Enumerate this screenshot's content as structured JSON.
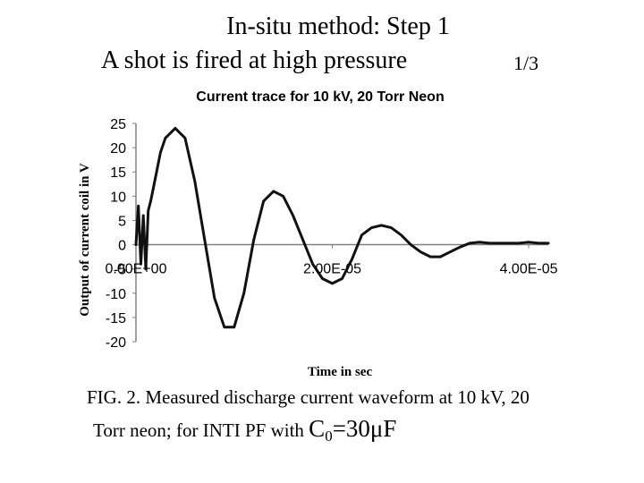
{
  "slide": {
    "title_line1": "In-situ method: Step 1",
    "title_line2": "A shot is fired at high pressure",
    "page": "1/3"
  },
  "caption": {
    "line1": "FIG. 2. Measured discharge current waveform at 10 kV, 20",
    "line2_prefix": "Torr neon; for INTI PF with ",
    "c_symbol": "C",
    "c_sub": "0",
    "c_value": "=30μF"
  },
  "chart_data": {
    "type": "line",
    "title": "Current trace for 10 kV, 20 Torr Neon",
    "xlabel": "Time in sec",
    "ylabel": "Output of current coil in V",
    "xlim": [
      0,
      4.2e-05
    ],
    "ylim": [
      -20,
      25
    ],
    "yticks": [
      25,
      20,
      15,
      10,
      5,
      0,
      -5,
      -10,
      -15,
      -20
    ],
    "xticks": [
      {
        "value": 0,
        "label": "0.00E+00"
      },
      {
        "value": 2e-05,
        "label": "2.00E-05"
      },
      {
        "value": 4e-05,
        "label": "4.00E-05"
      }
    ],
    "grid": false,
    "line_color": "#111111",
    "axis_color": "#808080",
    "series": [
      {
        "x": [
          0,
          2.5e-07,
          5e-07,
          7.5e-07,
          1e-06,
          1.25e-06,
          1.5e-06,
          2e-06,
          2.5e-06,
          3e-06,
          4e-06,
          5e-06,
          6e-06,
          7e-06,
          8e-06,
          9e-06,
          1e-05,
          1.1e-05,
          1.2e-05,
          1.3e-05,
          1.4e-05,
          1.5e-05,
          1.6e-05,
          1.7e-05,
          1.8e-05,
          1.9e-05,
          2e-05,
          2.1e-05,
          2.2e-05,
          2.3e-05,
          2.4e-05,
          2.5e-05,
          2.6e-05,
          2.7e-05,
          2.8e-05,
          2.9e-05,
          3e-05,
          3.1e-05,
          3.2e-05,
          3.3e-05,
          3.4e-05,
          3.5e-05,
          3.6e-05,
          3.7e-05,
          3.8e-05,
          3.9e-05,
          4e-05,
          4.1e-05,
          4.2e-05
        ],
        "y": [
          0,
          8,
          -4,
          6,
          -5,
          7,
          9,
          14,
          19,
          22,
          24,
          22,
          13,
          1,
          -11,
          -17,
          -17,
          -10,
          1,
          9,
          11,
          10,
          6,
          1,
          -4,
          -7,
          -8,
          -7,
          -3,
          2,
          3.5,
          4,
          3.5,
          2,
          0,
          -1.5,
          -2.5,
          -2.5,
          -1.5,
          -0.5,
          0.3,
          0.5,
          0.3,
          0.3,
          0.3,
          0.3,
          0.5,
          0.3,
          0.3
        ]
      }
    ]
  }
}
